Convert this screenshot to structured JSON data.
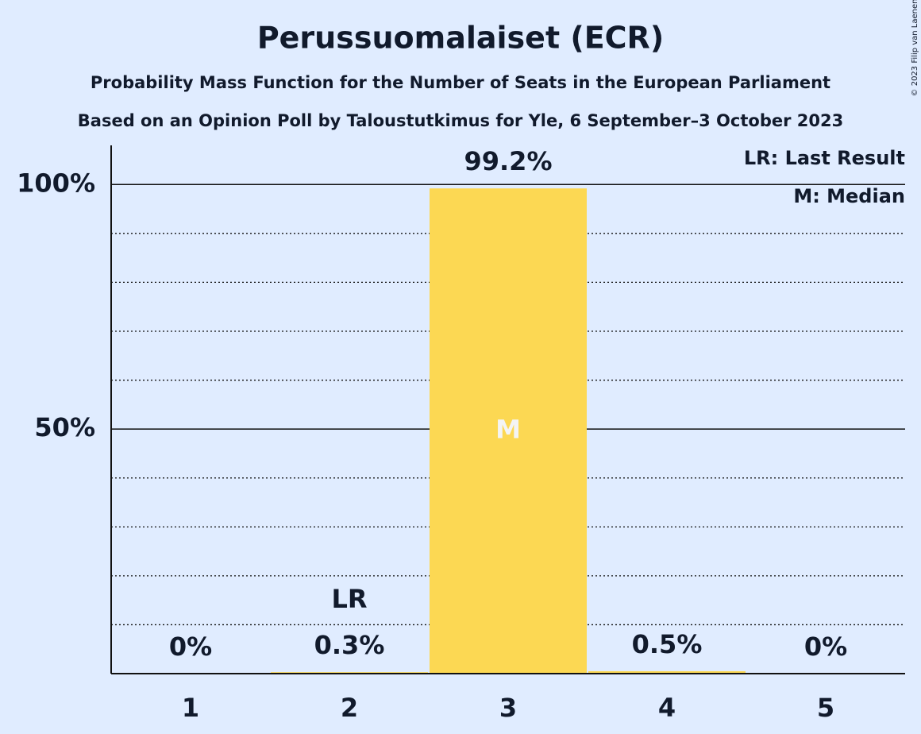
{
  "chart_data": {
    "type": "bar",
    "title": "Perussuomalaiset (ECR)",
    "subtitle": "Probability Mass Function for the Number of Seats in the European Parliament",
    "subtitle2": "Based on an Opinion Poll by Taloustutkimus for Yle, 6 September–3 October 2023",
    "copyright": "© 2023 Filip van Laenen",
    "categories": [
      "1",
      "2",
      "3",
      "4",
      "5"
    ],
    "values": [
      0,
      0.3,
      99.2,
      0.5,
      0
    ],
    "value_labels": [
      "0%",
      "0.3%",
      "99.2%",
      "0.5%",
      "0%"
    ],
    "color": "#fcd853",
    "ylim": [
      0,
      108
    ],
    "yticks": [
      {
        "value": 50,
        "label": "50%"
      },
      {
        "value": 100,
        "label": "100%"
      }
    ],
    "minor_yticks": [
      10,
      20,
      30,
      40,
      60,
      70,
      80,
      90
    ],
    "annotations": [
      {
        "category": "2",
        "text": "LR"
      },
      {
        "category": "3",
        "text": "M"
      }
    ],
    "legend": [
      "LR: Last Result",
      "M: Median"
    ]
  }
}
